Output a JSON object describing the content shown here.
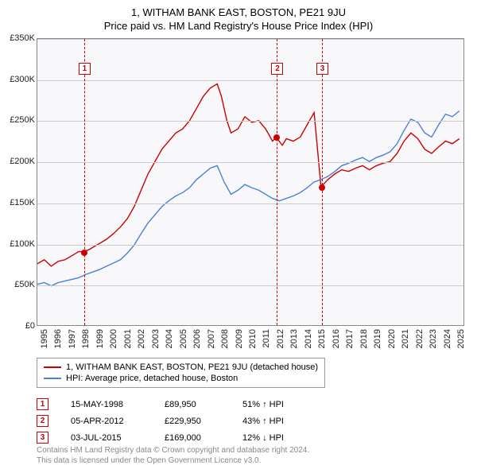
{
  "title": "1, WITHAM BANK EAST, BOSTON, PE21 9JU",
  "subtitle": "Price paid vs. HM Land Registry's House Price Index (HPI)",
  "chart": {
    "type": "line",
    "background_color": "#f8f8fa",
    "grid_color": "#cccccc",
    "border_color": "#888888",
    "ylim": [
      0,
      350000
    ],
    "ytick_step": 50000,
    "y_ticks": [
      "£0",
      "£50K",
      "£100K",
      "£150K",
      "£200K",
      "£250K",
      "£300K",
      "£350K"
    ],
    "xlim": [
      1995,
      2025.8
    ],
    "x_ticks": [
      1995,
      1996,
      1997,
      1998,
      1999,
      2000,
      2001,
      2002,
      2003,
      2004,
      2005,
      2006,
      2007,
      2008,
      2009,
      2010,
      2011,
      2012,
      2013,
      2014,
      2015,
      2016,
      2017,
      2018,
      2019,
      2020,
      2021,
      2022,
      2023,
      2024,
      2025
    ],
    "title_fontsize": 13,
    "label_fontsize": 11,
    "series": [
      {
        "name": "1, WITHAM BANK EAST, BOSTON, PE21 9JU (detached house)",
        "color": "#cc0000",
        "line_width": 1.4,
        "data": [
          [
            1995,
            75000
          ],
          [
            1995.5,
            80000
          ],
          [
            1996,
            72000
          ],
          [
            1996.5,
            78000
          ],
          [
            1997,
            80000
          ],
          [
            1997.5,
            85000
          ],
          [
            1998,
            90000
          ],
          [
            1998.37,
            89950
          ],
          [
            1998.7,
            92000
          ],
          [
            1999,
            95000
          ],
          [
            1999.5,
            100000
          ],
          [
            2000,
            105000
          ],
          [
            2000.5,
            112000
          ],
          [
            2001,
            120000
          ],
          [
            2001.5,
            130000
          ],
          [
            2002,
            145000
          ],
          [
            2002.5,
            165000
          ],
          [
            2003,
            185000
          ],
          [
            2003.5,
            200000
          ],
          [
            2004,
            215000
          ],
          [
            2004.5,
            225000
          ],
          [
            2005,
            235000
          ],
          [
            2005.5,
            240000
          ],
          [
            2006,
            250000
          ],
          [
            2006.5,
            265000
          ],
          [
            2007,
            280000
          ],
          [
            2007.5,
            290000
          ],
          [
            2008,
            295000
          ],
          [
            2008.3,
            280000
          ],
          [
            2008.7,
            250000
          ],
          [
            2009,
            235000
          ],
          [
            2009.5,
            240000
          ],
          [
            2010,
            255000
          ],
          [
            2010.5,
            248000
          ],
          [
            2011,
            250000
          ],
          [
            2011.5,
            240000
          ],
          [
            2012,
            225000
          ],
          [
            2012.26,
            229950
          ],
          [
            2012.7,
            220000
          ],
          [
            2013,
            228000
          ],
          [
            2013.5,
            225000
          ],
          [
            2014,
            230000
          ],
          [
            2014.5,
            245000
          ],
          [
            2015,
            260000
          ],
          [
            2015.5,
            169000
          ],
          [
            2016,
            178000
          ],
          [
            2016.5,
            185000
          ],
          [
            2017,
            190000
          ],
          [
            2017.5,
            188000
          ],
          [
            2018,
            192000
          ],
          [
            2018.5,
            195000
          ],
          [
            2019,
            190000
          ],
          [
            2019.5,
            195000
          ],
          [
            2020,
            198000
          ],
          [
            2020.5,
            200000
          ],
          [
            2021,
            210000
          ],
          [
            2021.5,
            225000
          ],
          [
            2022,
            235000
          ],
          [
            2022.5,
            228000
          ],
          [
            2023,
            215000
          ],
          [
            2023.5,
            210000
          ],
          [
            2024,
            218000
          ],
          [
            2024.5,
            225000
          ],
          [
            2025,
            222000
          ],
          [
            2025.5,
            228000
          ]
        ]
      },
      {
        "name": "HPI: Average price, detached house, Boston",
        "color": "#4a7fd6",
        "line_width": 1.4,
        "data": [
          [
            1995,
            50000
          ],
          [
            1995.5,
            52000
          ],
          [
            1996,
            48000
          ],
          [
            1996.5,
            52000
          ],
          [
            1997,
            54000
          ],
          [
            1997.5,
            56000
          ],
          [
            1998,
            58000
          ],
          [
            1998.5,
            62000
          ],
          [
            1999,
            65000
          ],
          [
            1999.5,
            68000
          ],
          [
            2000,
            72000
          ],
          [
            2000.5,
            76000
          ],
          [
            2001,
            80000
          ],
          [
            2001.5,
            88000
          ],
          [
            2002,
            98000
          ],
          [
            2002.5,
            112000
          ],
          [
            2003,
            125000
          ],
          [
            2003.5,
            135000
          ],
          [
            2004,
            145000
          ],
          [
            2004.5,
            152000
          ],
          [
            2005,
            158000
          ],
          [
            2005.5,
            162000
          ],
          [
            2006,
            168000
          ],
          [
            2006.5,
            178000
          ],
          [
            2007,
            185000
          ],
          [
            2007.5,
            192000
          ],
          [
            2008,
            195000
          ],
          [
            2008.5,
            175000
          ],
          [
            2009,
            160000
          ],
          [
            2009.5,
            165000
          ],
          [
            2010,
            172000
          ],
          [
            2010.5,
            168000
          ],
          [
            2011,
            165000
          ],
          [
            2011.5,
            160000
          ],
          [
            2012,
            155000
          ],
          [
            2012.5,
            152000
          ],
          [
            2013,
            155000
          ],
          [
            2013.5,
            158000
          ],
          [
            2014,
            162000
          ],
          [
            2014.5,
            168000
          ],
          [
            2015,
            175000
          ],
          [
            2015.5,
            178000
          ],
          [
            2016,
            182000
          ],
          [
            2016.5,
            188000
          ],
          [
            2017,
            195000
          ],
          [
            2017.5,
            198000
          ],
          [
            2018,
            202000
          ],
          [
            2018.5,
            205000
          ],
          [
            2019,
            200000
          ],
          [
            2019.5,
            205000
          ],
          [
            2020,
            208000
          ],
          [
            2020.5,
            212000
          ],
          [
            2021,
            222000
          ],
          [
            2021.5,
            238000
          ],
          [
            2022,
            252000
          ],
          [
            2022.5,
            248000
          ],
          [
            2023,
            235000
          ],
          [
            2023.5,
            230000
          ],
          [
            2024,
            245000
          ],
          [
            2024.5,
            258000
          ],
          [
            2025,
            255000
          ],
          [
            2025.5,
            262000
          ]
        ]
      }
    ],
    "markers": [
      {
        "n": "1",
        "x": 1998.37,
        "y": 89950,
        "color": "#cc0000",
        "badge_y": 78
      },
      {
        "n": "2",
        "x": 2012.26,
        "y": 229950,
        "color": "#cc0000",
        "badge_y": 78
      },
      {
        "n": "3",
        "x": 2015.5,
        "y": 169000,
        "color": "#cc0000",
        "badge_y": 78
      }
    ]
  },
  "legend": {
    "items": [
      {
        "color": "#cc0000",
        "label": "1, WITHAM BANK EAST, BOSTON, PE21 9JU (detached house)"
      },
      {
        "color": "#4a7fd6",
        "label": "HPI: Average price, detached house, Boston"
      }
    ]
  },
  "transactions": [
    {
      "n": "1",
      "date": "15-MAY-1998",
      "price": "£89,950",
      "delta": "51% ↑ HPI"
    },
    {
      "n": "2",
      "date": "05-APR-2012",
      "price": "£229,950",
      "delta": "43% ↑ HPI"
    },
    {
      "n": "3",
      "date": "03-JUL-2015",
      "price": "£169,000",
      "delta": "12% ↓ HPI"
    }
  ],
  "footer": {
    "line1": "Contains HM Land Registry data © Crown copyright and database right 2024.",
    "line2": "This data is licensed under the Open Government Licence v3.0."
  }
}
